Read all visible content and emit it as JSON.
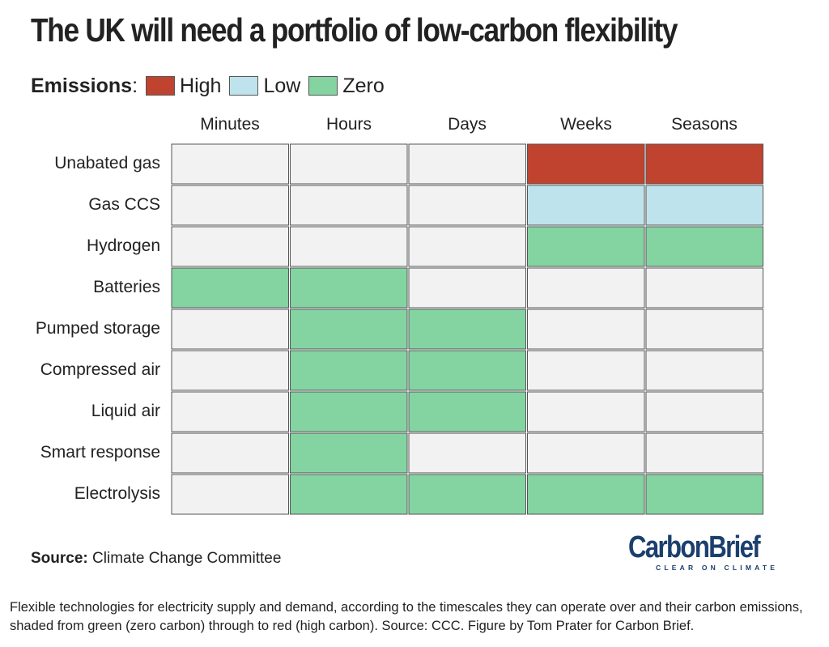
{
  "title": "The UK will need a portfolio of low-carbon flexibility",
  "legend": {
    "title": "Emissions",
    "colon": ":",
    "items": [
      {
        "label": "High",
        "color": "#c0432f"
      },
      {
        "label": "Low",
        "color": "#bfe3ec"
      },
      {
        "label": "Zero",
        "color": "#84d4a2"
      }
    ]
  },
  "colors": {
    "empty": "#f2f2f2",
    "border": "#555555"
  },
  "chart_data": {
    "type": "table",
    "columns": [
      "Minutes",
      "Hours",
      "Days",
      "Weeks",
      "Seasons"
    ],
    "rows": [
      {
        "label": "Unabated gas",
        "values": [
          null,
          null,
          null,
          "High",
          "High"
        ]
      },
      {
        "label": "Gas CCS",
        "values": [
          null,
          null,
          null,
          "Low",
          "Low"
        ]
      },
      {
        "label": "Hydrogen",
        "values": [
          null,
          null,
          null,
          "Zero",
          "Zero"
        ]
      },
      {
        "label": "Batteries",
        "values": [
          "Zero",
          "Zero",
          null,
          null,
          null
        ]
      },
      {
        "label": "Pumped storage",
        "values": [
          null,
          "Zero",
          "Zero",
          null,
          null
        ]
      },
      {
        "label": "Compressed air",
        "values": [
          null,
          "Zero",
          "Zero",
          null,
          null
        ]
      },
      {
        "label": "Liquid air",
        "values": [
          null,
          "Zero",
          "Zero",
          null,
          null
        ]
      },
      {
        "label": "Smart response",
        "values": [
          null,
          "Zero",
          null,
          null,
          null
        ]
      },
      {
        "label": "Electrolysis",
        "values": [
          null,
          "Zero",
          "Zero",
          "Zero",
          "Zero"
        ]
      }
    ]
  },
  "source": {
    "label": "Source:",
    "text": "Climate Change Committee"
  },
  "logo": {
    "name": "CarbonBrief",
    "tagline": "CLEAR ON CLIMATE"
  },
  "caption": "Flexible technologies for electricity supply and demand, according to the timescales they can operate over and their carbon emissions, shaded from green (zero carbon) through to red (high carbon). Source: CCC. Figure by Tom Prater for Carbon Brief."
}
